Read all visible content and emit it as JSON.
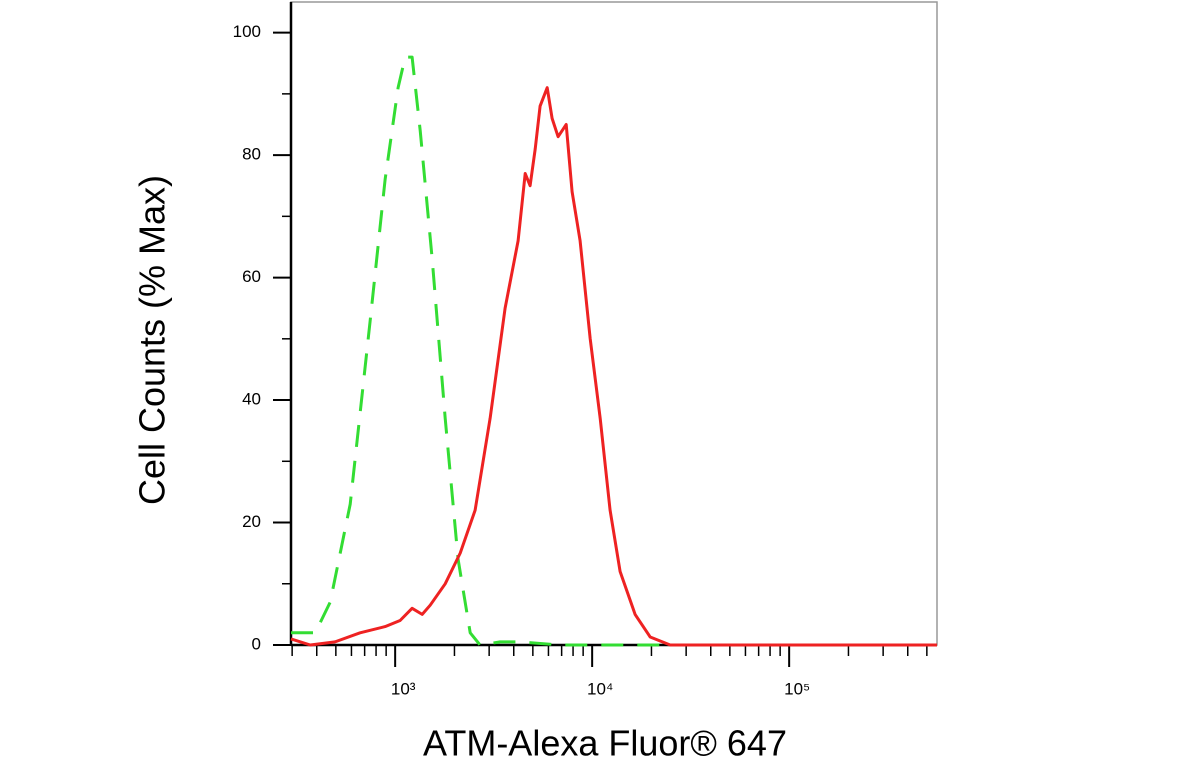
{
  "chart_data": {
    "type": "line",
    "xlabel": "ATM-Alexa Fluor® 647",
    "ylabel": "Cell Counts (% Max)",
    "xscale": "log",
    "xlim": [
      296,
      563000
    ],
    "ylim": [
      0,
      105
    ],
    "xticks": [
      {
        "value": 1000,
        "label": "10³"
      },
      {
        "value": 10000,
        "label": "10⁴"
      },
      {
        "value": 100000,
        "label": "10⁵"
      }
    ],
    "xminor_ticks": [
      300,
      400,
      500,
      600,
      700,
      800,
      900,
      2000,
      3000,
      4000,
      5000,
      6000,
      7000,
      8000,
      9000,
      20000,
      30000,
      40000,
      50000,
      60000,
      70000,
      80000,
      90000,
      200000,
      300000,
      400000,
      500000
    ],
    "yticks": [
      0,
      20,
      40,
      60,
      80,
      100
    ],
    "yminor_ticks": [
      10,
      30,
      50,
      70,
      90
    ],
    "series": [
      {
        "color": "#33dd33",
        "dashed": true,
        "x": [
          296,
          393,
          468,
          591,
          747,
          889,
          1035,
          1124,
          1219,
          1340,
          1542,
          1795,
          2088,
          2403,
          2700,
          3410,
          4310,
          6880,
          19700,
          113700,
          563000
        ],
        "values": [
          2,
          2,
          7,
          23,
          53,
          76,
          91,
          96,
          96,
          84,
          63,
          37,
          14,
          2,
          0,
          0.5,
          0.5,
          0,
          0,
          0,
          0
        ]
      },
      {
        "color": "#ee2222",
        "dashed": false,
        "x": [
          296,
          371,
          495,
          664,
          889,
          1060,
          1219,
          1371,
          1506,
          1795,
          2138,
          2547,
          3035,
          3615,
          4210,
          4570,
          4840,
          5140,
          5445,
          5910,
          6265,
          6715,
          7380,
          7910,
          8690,
          9770,
          10990,
          12340,
          13870,
          16520,
          19700,
          24890,
          35320,
          563000
        ],
        "values": [
          1,
          0,
          0.5,
          2,
          3,
          4,
          6,
          5,
          6.5,
          10,
          15,
          22,
          37,
          55,
          66,
          77,
          75,
          81,
          88,
          91,
          86,
          83,
          85,
          74,
          66,
          50,
          37,
          22,
          12,
          5,
          1.3,
          0,
          0,
          0
        ]
      }
    ]
  }
}
